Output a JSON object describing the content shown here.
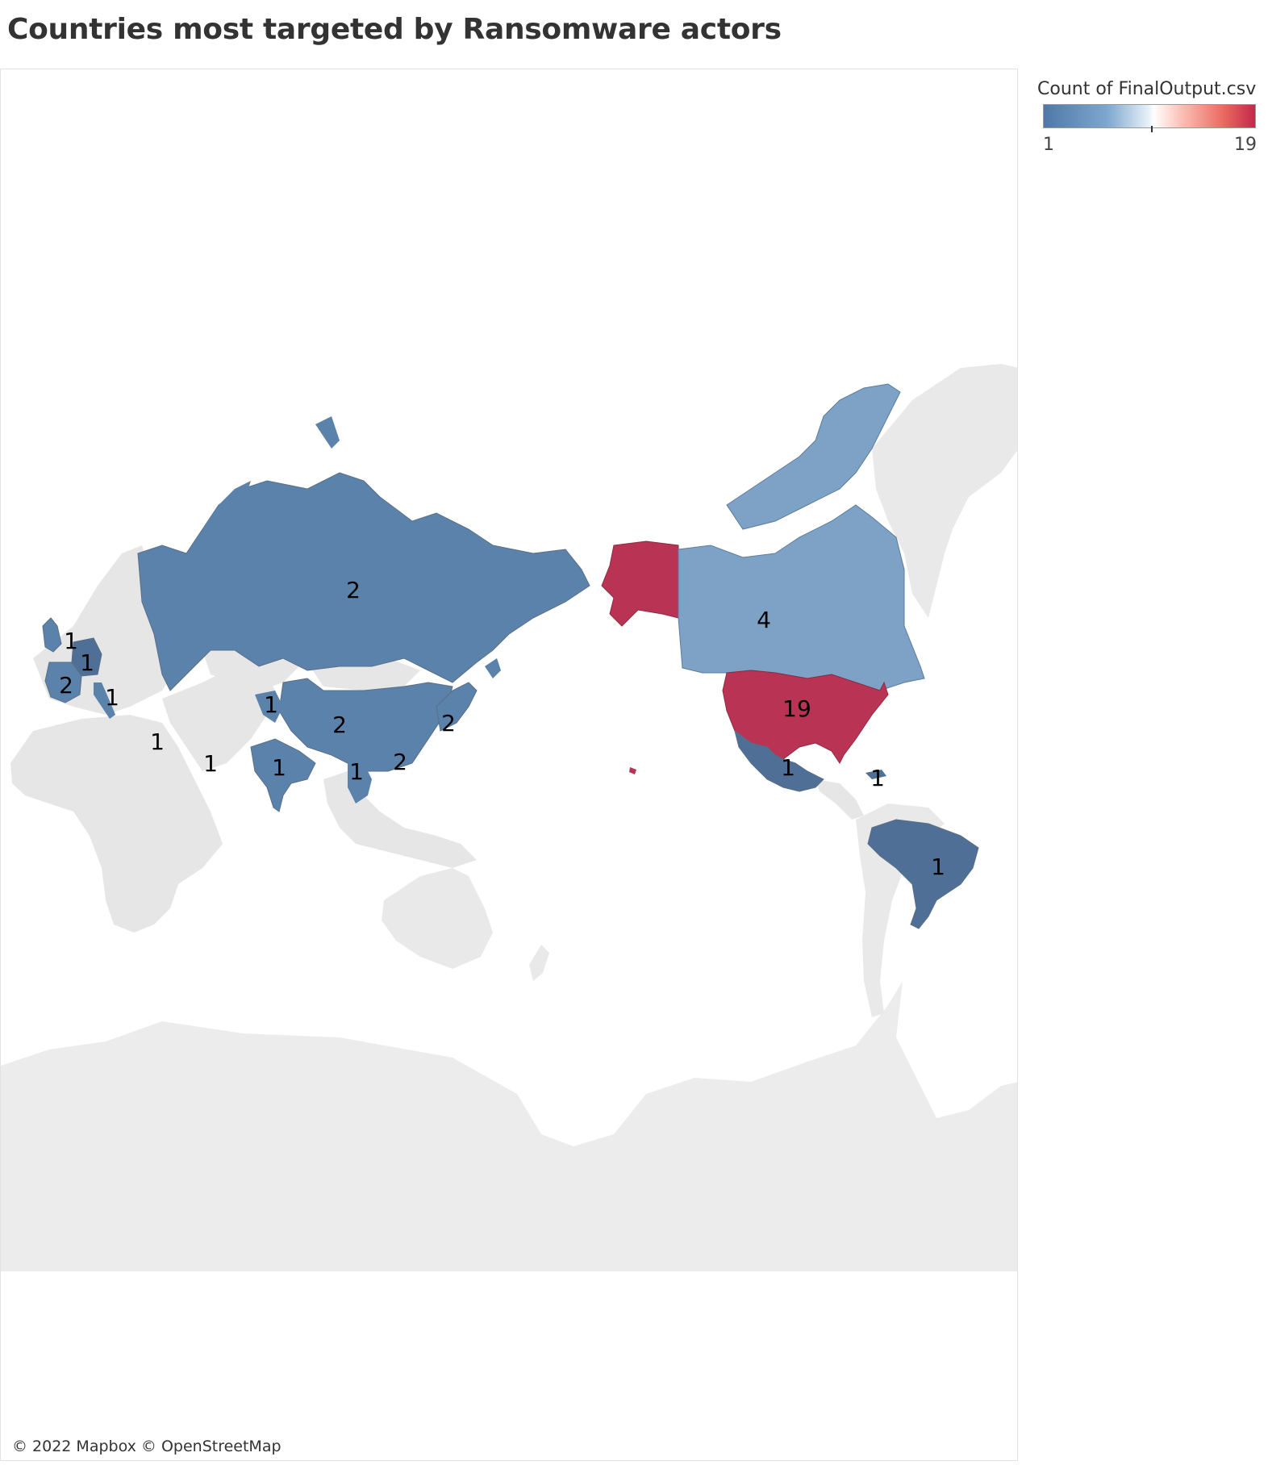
{
  "title": "Countries most targeted by Ransomware actors",
  "map": {
    "attribution": "© 2022 Mapbox © OpenStreetMap",
    "colors": {
      "low": "#4e79a7",
      "mid": "#ffffff",
      "high": "#c2284a",
      "land": "#e9e9e9",
      "water": "#ffffff"
    }
  },
  "legend": {
    "title": "Count of FinalOutput.csv",
    "min": "1",
    "max": "19"
  },
  "chart_data": {
    "type": "choropleth",
    "measure": "Count of FinalOutput.csv",
    "color_range": [
      1,
      19
    ],
    "regions": [
      {
        "label": "19"
      },
      {
        "label": "4"
      },
      {
        "label": "2"
      },
      {
        "label": "2"
      },
      {
        "label": "2"
      },
      {
        "label": "2"
      },
      {
        "label": "2"
      },
      {
        "label": "1"
      },
      {
        "label": "1"
      },
      {
        "label": "1"
      },
      {
        "label": "1"
      },
      {
        "label": "1"
      },
      {
        "label": "1"
      },
      {
        "label": "1"
      },
      {
        "label": "1"
      },
      {
        "label": "1"
      },
      {
        "label": "1"
      },
      {
        "label": "1"
      }
    ]
  }
}
